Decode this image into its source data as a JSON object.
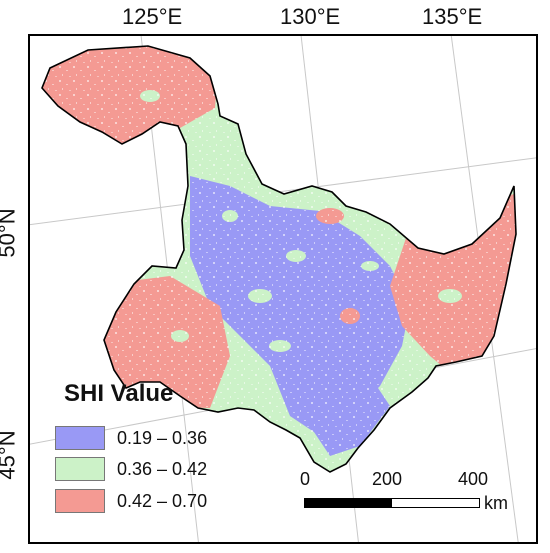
{
  "map": {
    "longitude_labels": [
      "125°E",
      "130°E",
      "135°E"
    ],
    "latitude_labels": [
      "50°N",
      "45°N"
    ]
  },
  "legend": {
    "title": "SHI Value",
    "items": [
      {
        "label": "0.19 – 0.36",
        "color": "#9999f5"
      },
      {
        "label": "0.36 – 0.42",
        "color": "#ccf2c8"
      },
      {
        "label": "0.42 – 0.70",
        "color": "#f49a93"
      }
    ]
  },
  "scalebar": {
    "ticks": [
      "0",
      "200",
      "400"
    ],
    "unit": "km"
  }
}
